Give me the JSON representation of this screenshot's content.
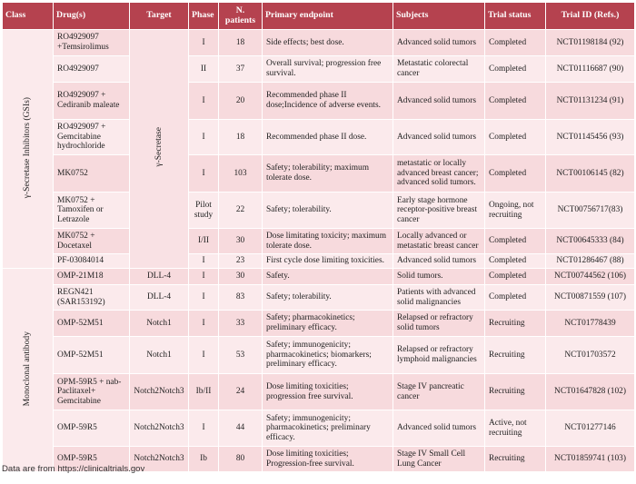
{
  "headers": [
    "Class",
    "Drug(s)",
    "Target",
    "Phase",
    "N. patients",
    "Primary endpoint",
    "Subjects",
    "Trial status",
    "Trial ID (Refs.)"
  ],
  "groups": [
    {
      "class": "γ-Secretase Inhibitors (GSIs)",
      "target": "γ-Secretase",
      "rows": [
        {
          "drug": "RO4929097 +Temsirolimus",
          "phase": "I",
          "n": "18",
          "endpoint": "Side effects; best dose.",
          "subjects": "Advanced solid tumors",
          "status": "Completed",
          "trial": "NCT01198184 (92)"
        },
        {
          "drug": "RO4929097",
          "phase": "II",
          "n": "37",
          "endpoint": "Overall survival; progression free survival.",
          "subjects": "Metastatic colorectal cancer",
          "status": "Completed",
          "trial": "NCT01116687 (90)"
        },
        {
          "drug": "RO4929097 + Cediranib maleate",
          "phase": "I",
          "n": "20",
          "endpoint": "Recommended phase II dose;Incidence of adverse events.",
          "subjects": "Advanced solid tumors",
          "status": "Completed",
          "trial": "NCT01131234 (91)"
        },
        {
          "drug": "RO4929097 + Gemcitabine hydrochloride",
          "phase": "I",
          "n": "18",
          "endpoint": "Recommended phase II dose.",
          "subjects": "Advanced solid tumors",
          "status": "Completed",
          "trial": "NCT01145456 (93)"
        },
        {
          "drug": "MK0752",
          "phase": "I",
          "n": "103",
          "endpoint": "Safety; tolerability; maximum tolerate dose.",
          "subjects": "metastatic or locally advanced breast cancer; advanced solid tumors.",
          "status": "Completed",
          "trial": "NCT00106145 (82)"
        },
        {
          "drug": "MK0752 + Tamoxifen or Letrazole",
          "phase": "Pilot study",
          "n": "22",
          "endpoint": "Safety; tolerability.",
          "subjects": "Early stage hormone receptor-positive breast cancer",
          "status": "Ongoing, not recruiting",
          "trial": "NCT00756717(83)"
        },
        {
          "drug": "MK0752 + Docetaxel",
          "phase": "I/II",
          "n": "30",
          "endpoint": "Dose limitating toxicity; maximum tolerate dose.",
          "subjects": "Locally advanced or metastatic breast cancer",
          "status": "Completed",
          "trial": "NCT00645333 (84)"
        },
        {
          "drug": "PF-03084014",
          "phase": "I",
          "n": "23",
          "endpoint": "First cycle dose limiting toxicities.",
          "subjects": "Advanced solid tumors",
          "status": "Completed",
          "trial": "NCT01286467 (88)"
        }
      ]
    },
    {
      "class": "Monoclonal antibody",
      "rows": [
        {
          "drug": "OMP-21M18",
          "target": "DLL-4",
          "phase": "I",
          "n": "30",
          "endpoint": "Safety.",
          "subjects": "Solid tumors.",
          "status": "Completed",
          "trial": "NCT00744562 (106)"
        },
        {
          "drug": "REGN421 (SAR153192)",
          "target": "DLL-4",
          "phase": "I",
          "n": "83",
          "endpoint": "Safety; tolerability.",
          "subjects": "Patients with advanced solid malignancies",
          "status": "Completed",
          "trial": "NCT00871559 (107)"
        },
        {
          "drug": "OMP-52M51",
          "target": "Notch1",
          "phase": "I",
          "n": "33",
          "endpoint": "Safety; pharmacokinetics; preliminary efficacy.",
          "subjects": "Relapsed or refractory solid tumors",
          "status": "Recruiting",
          "trial": "NCT01778439"
        },
        {
          "drug": "OMP-52M51",
          "target": "Notch1",
          "phase": "I",
          "n": "53",
          "endpoint": "Safety; immunogenicity; pharmacokinetics; biomarkers; preliminary efficacy.",
          "subjects": "Relapsed or refractory lymphoid malignancies",
          "status": "Recruiting",
          "trial": "NCT01703572"
        },
        {
          "drug": "OPM-59R5 + nab-Paclitaxel+ Gemcitabine",
          "target": "Notch2Notch3",
          "phase": "Ib/II",
          "n": "24",
          "endpoint": "Dose limiting toxicities; progression free survival.",
          "subjects": "Stage IV pancreatic cancer",
          "status": "Recruiting",
          "trial": "NCT01647828 (102)"
        },
        {
          "drug": "OMP-59R5",
          "target": "Notch2Notch3",
          "phase": "I",
          "n": "44",
          "endpoint": "Safety; immunogenicity; pharmacokinetics; preliminary efficacy.",
          "subjects": "Advanced solid tumors",
          "status": "Active, not recruiting",
          "trial": "NCT01277146"
        },
        {
          "drug": "OMP-59R5",
          "target": "Notch2Notch3",
          "phase": "Ib",
          "n": "80",
          "endpoint": "Dose limiting toxicities; Progression-free survival.",
          "subjects": "Stage IV Small Cell Lung Cancer",
          "status": "Recruiting",
          "trial": "NCT01859741 (103)"
        }
      ]
    }
  ],
  "footnote": "Data are from https://clinicaltrials.gov"
}
